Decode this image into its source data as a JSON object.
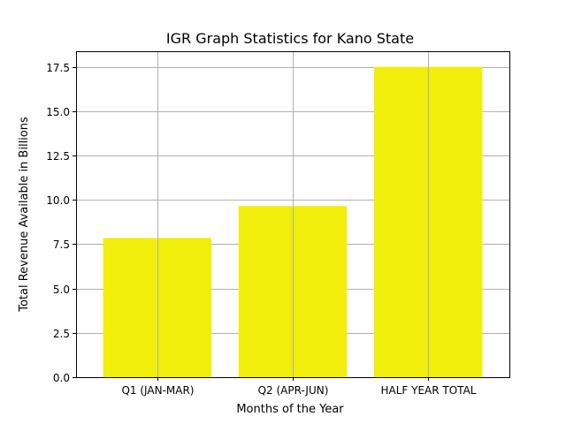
{
  "chart_data": {
    "type": "bar",
    "title": "IGR Graph Statistics for Kano State",
    "xlabel": "Months of the Year",
    "ylabel": "Total Revenue Available in Billions",
    "categories": [
      "Q1 (JAN-MAR)",
      "Q2 (APR-JUN)",
      "HALF YEAR TOTAL"
    ],
    "values": [
      7.85,
      9.65,
      17.5
    ],
    "ylim": [
      0,
      18.375
    ],
    "yticks": [
      0.0,
      2.5,
      5.0,
      7.5,
      10.0,
      12.5,
      15.0,
      17.5
    ],
    "ytick_labels": [
      "0.0",
      "2.5",
      "5.0",
      "7.5",
      "10.0",
      "12.5",
      "15.0",
      "17.5"
    ],
    "grid": true,
    "bar_color": "#f0ee0a",
    "grid_color": "#b0b0b0"
  }
}
